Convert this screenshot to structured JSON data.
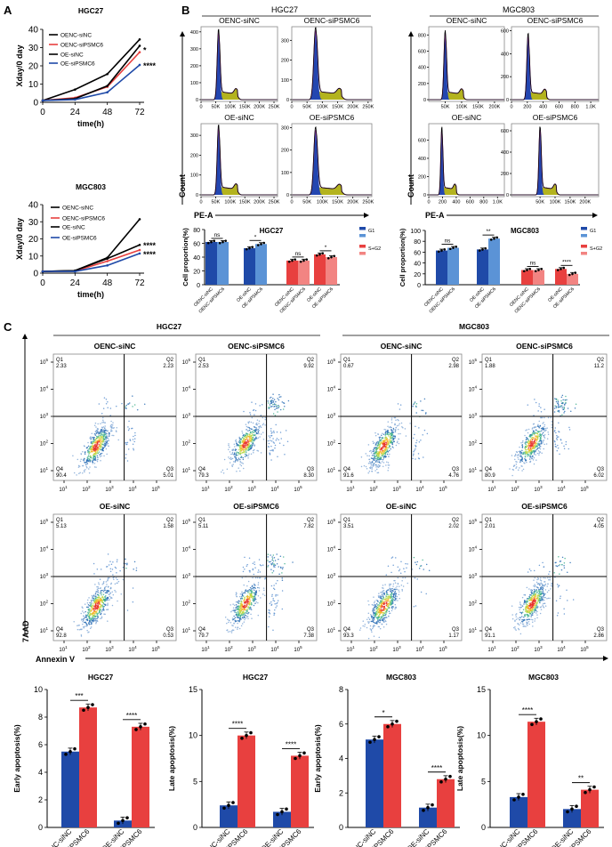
{
  "panel_labels": {
    "a": "A",
    "b": "B",
    "c": "C"
  },
  "headers": {
    "b_hgc27": "HGC27",
    "b_mgc803": "MGC803",
    "c_hgc27": "HGC27",
    "c_mgc803": "MGC803"
  },
  "axis_labels": {
    "count": "Count",
    "pe_a": "PE-A",
    "annexin": "Annexin V",
    "aad": "7AAD"
  },
  "colors": {
    "blue": "#1f4aa8",
    "light_blue": "#5b93d6",
    "red": "#e8403f",
    "light_red": "#f28482",
    "black": "#000000",
    "hist_g1": "#2346b0",
    "hist_s": "#b3b31e",
    "hist_outline": "#a43ca8"
  },
  "chart_data": [
    {
      "id": "growth_hgc27",
      "type": "line",
      "title": "HGC27",
      "xlabel": "time(h)",
      "ylabel": "Xday/0 day",
      "x": [
        0,
        24,
        48,
        72
      ],
      "xticks": [
        0,
        24,
        48,
        72
      ],
      "ylim": [
        0,
        40
      ],
      "yticks": [
        0,
        10,
        20,
        30,
        40
      ],
      "legend": "top-left",
      "series": [
        {
          "name": "OENC-siNC",
          "color": "#000000",
          "values": [
            1,
            7,
            15.5,
            34.5
          ]
        },
        {
          "name": "OENC-siPSMC6",
          "color": "#e8403f",
          "values": [
            1,
            2.5,
            8.5,
            27.5
          ]
        },
        {
          "name": "OE-siNC",
          "color": "#000000",
          "values": [
            1,
            2,
            9,
            31
          ]
        },
        {
          "name": "OE-siPSMC6",
          "color": "#1f4aa8",
          "values": [
            1,
            1.5,
            5.5,
            20.5
          ]
        }
      ],
      "annotations": [
        {
          "text": "*",
          "at": 29
        },
        {
          "text": "****",
          "at": 20.5
        }
      ]
    },
    {
      "id": "growth_mgc803",
      "type": "line",
      "title": "MGC803",
      "xlabel": "time(h)",
      "ylabel": "Xday/0 day",
      "x": [
        0,
        24,
        48,
        72
      ],
      "xticks": [
        0,
        24,
        48,
        72
      ],
      "ylim": [
        0,
        40
      ],
      "yticks": [
        0,
        10,
        20,
        30,
        40
      ],
      "legend": "top-left",
      "series": [
        {
          "name": "OENC-siNC",
          "color": "#000000",
          "values": [
            1,
            1.5,
            9,
            31.5
          ]
        },
        {
          "name": "OENC-siPSMC6",
          "color": "#e8403f",
          "values": [
            1,
            1.2,
            7,
            13.5
          ]
        },
        {
          "name": "OE-siNC",
          "color": "#000000",
          "values": [
            1,
            1.5,
            8.5,
            16.5
          ]
        },
        {
          "name": "OE-siPSMC6",
          "color": "#1f4aa8",
          "values": [
            1,
            1,
            4.5,
            11.5
          ]
        }
      ],
      "annotations": [
        {
          "text": "****",
          "at": 16.5
        },
        {
          "text": "****",
          "at": 12.8
        }
      ]
    },
    {
      "id": "cellcycle_histograms",
      "type": "histogram",
      "xlabel": "PE-A",
      "ylabel": "Count",
      "panels": [
        {
          "cell_line": "HGC27",
          "title": "OENC-siNC",
          "xlim": [
            0,
            262144
          ],
          "xticks": [
            0,
            50000,
            100000,
            150000,
            200000,
            250000
          ],
          "xticklabels": [
            "0",
            "50K",
            "100K",
            "150K",
            "200K",
            "250K"
          ],
          "yticks": [
            0,
            100,
            200,
            300,
            400
          ],
          "ymax": 420,
          "g1_peak": 60000,
          "peak_count": 400
        },
        {
          "cell_line": "HGC27",
          "title": "OENC-siPSMC6",
          "xlim": [
            0,
            262144
          ],
          "xticks": [
            0,
            50000,
            100000,
            150000,
            200000,
            250000
          ],
          "xticklabels": [
            "0",
            "50K",
            "100K",
            "150K",
            "200K",
            "250K"
          ],
          "yticks": [
            0,
            100,
            200,
            300
          ],
          "ymax": 360,
          "g1_peak": 78000,
          "peak_count": 350
        },
        {
          "cell_line": "HGC27",
          "title": "OE-siNC",
          "xlim": [
            0,
            262144
          ],
          "xticks": [
            0,
            50000,
            100000,
            150000,
            200000,
            250000
          ],
          "xticklabels": [
            "0",
            "50K",
            "100K",
            "150K",
            "200K",
            "250K"
          ],
          "yticks": [
            0,
            100,
            200,
            300
          ],
          "ymax": 350,
          "g1_peak": 60000,
          "peak_count": 340
        },
        {
          "cell_line": "HGC27",
          "title": "OE-siPSMC6",
          "xlim": [
            0,
            262144
          ],
          "xticks": [
            0,
            50000,
            100000,
            150000,
            200000,
            250000
          ],
          "xticklabels": [
            "0",
            "50K",
            "100K",
            "150K",
            "200K",
            "250K"
          ],
          "yticks": [
            0,
            100,
            200,
            300
          ],
          "ymax": 310,
          "g1_peak": 78000,
          "peak_count": 290
        },
        {
          "cell_line": "MGC803",
          "title": "OENC-siNC",
          "xlim": [
            0,
            230000
          ],
          "xticks": [
            50000,
            100000,
            150000,
            200000
          ],
          "xticklabels": [
            "50K",
            "100K",
            "150K",
            "200K"
          ],
          "yticks": [
            0,
            200,
            400,
            600,
            800
          ],
          "ymax": 880,
          "g1_peak": 50000,
          "peak_count": 820
        },
        {
          "cell_line": "MGC803",
          "title": "OENC-siPSMC6",
          "xlim": [
            0,
            1100
          ],
          "xticks": [
            0,
            200,
            400,
            600,
            800,
            1000
          ],
          "xticklabels": [
            "0",
            "200",
            "400",
            "600",
            "800",
            "1.0K"
          ],
          "yticks": [
            0,
            200,
            400,
            600
          ],
          "ymax": 620,
          "g1_peak": 210,
          "peak_count": 560
        },
        {
          "cell_line": "MGC803",
          "title": "OE-siNC",
          "xlim": [
            0,
            1100
          ],
          "xticks": [
            0,
            200,
            400,
            600,
            800,
            1000
          ],
          "xticklabels": [
            "0",
            "200",
            "400",
            "600",
            "800",
            "1.0K"
          ],
          "yticks": [
            0,
            200,
            400,
            600
          ],
          "ymax": 760,
          "g1_peak": 190,
          "peak_count": 720
        },
        {
          "cell_line": "MGC803",
          "title": "OE-siPSMC6",
          "xlim": [
            -45000,
            245000
          ],
          "xticks": [
            50000,
            100000,
            150000,
            200000
          ],
          "xticklabels": [
            "50K",
            "100K",
            "150K",
            "200K"
          ],
          "yticks": [
            0,
            200,
            400,
            600
          ],
          "ymax": 650,
          "g1_peak": 50000,
          "peak_count": 620
        }
      ]
    },
    {
      "id": "cellcycle_hgc27",
      "type": "bar",
      "title": "HGC27",
      "ylabel": "Cell proportion(%)",
      "categories": [
        "OENC-siNC",
        "OENC-siPSMC6",
        "OE-siNC",
        "OE-siPSMC6"
      ],
      "series": [
        {
          "name": "G1",
          "colors": [
            "#1f4aa8",
            "#5b93d6"
          ],
          "values": [
            62,
            62,
            53,
            59
          ]
        },
        {
          "name": "S+G2",
          "colors": [
            "#e8403f",
            "#f28482"
          ],
          "values": [
            35,
            35,
            44,
            40
          ]
        }
      ],
      "significance": [
        "ns",
        "*",
        "ns",
        "*"
      ],
      "ylim": [
        0,
        80
      ],
      "yticks": [
        0,
        20,
        40,
        60,
        80
      ],
      "legend": "right"
    },
    {
      "id": "cellcycle_mgc803",
      "type": "bar",
      "title": "MGC803",
      "ylabel": "Cell proportion(%)",
      "categories": [
        "OENC-siNC",
        "OENC-siPSMC6",
        "OE-siNC",
        "OE-siPSMC6"
      ],
      "series": [
        {
          "name": "G1",
          "colors": [
            "#1f4aa8",
            "#5b93d6"
          ],
          "values": [
            63,
            68,
            65,
            85
          ]
        },
        {
          "name": "S+G2",
          "colors": [
            "#e8403f",
            "#f28482"
          ],
          "values": [
            27,
            27,
            29,
            20
          ]
        }
      ],
      "significance": [
        "ns",
        "**",
        "ns",
        "****"
      ],
      "ylim": [
        0,
        100
      ],
      "yticks": [
        0,
        20,
        40,
        60,
        80,
        100
      ],
      "legend": "right"
    },
    {
      "id": "apoptosis_flow",
      "type": "scatter",
      "xlabel": "Annexin V",
      "ylabel": "7AAD",
      "ticks": [
        {
          "base": "10",
          "exp": "1"
        },
        {
          "base": "10",
          "exp": "2"
        },
        {
          "base": "10",
          "exp": "3"
        },
        {
          "base": "10",
          "exp": "4"
        },
        {
          "base": "10",
          "exp": "5"
        }
      ],
      "panels": [
        {
          "cell_line": "HGC27",
          "title": "OENC-siNC",
          "Q1": "2.33",
          "Q2": "2.23",
          "Q3": "5.01",
          "Q4": "90.4"
        },
        {
          "cell_line": "HGC27",
          "title": "OENC-siPSMC6",
          "Q1": "2.53",
          "Q2": "9.92",
          "Q3": "8.30",
          "Q4": "79.3"
        },
        {
          "cell_line": "MGC803",
          "title": "OENC-siNC",
          "Q1": "0.67",
          "Q2": "2.98",
          "Q3": "4.76",
          "Q4": "91.6"
        },
        {
          "cell_line": "MGC803",
          "title": "OENC-siPSMC6",
          "Q1": "1.88",
          "Q2": "11.2",
          "Q3": "6.02",
          "Q4": "80.9"
        },
        {
          "cell_line": "HGC27",
          "title": "OE-siNC",
          "Q1": "5.13",
          "Q2": "1.58",
          "Q3": "0.53",
          "Q4": "92.8"
        },
        {
          "cell_line": "HGC27",
          "title": "OE-siPSMC6",
          "Q1": "5.11",
          "Q2": "7.82",
          "Q3": "7.38",
          "Q4": "79.7"
        },
        {
          "cell_line": "MGC803",
          "title": "OE-siNC",
          "Q1": "3.51",
          "Q2": "2.02",
          "Q3": "1.17",
          "Q4": "93.3"
        },
        {
          "cell_line": "MGC803",
          "title": "OE-siPSMC6",
          "Q1": "2.01",
          "Q2": "4.05",
          "Q3": "2.86",
          "Q4": "91.1"
        }
      ]
    },
    {
      "id": "early_hgc27",
      "type": "bar",
      "title": "HGC27",
      "ylabel": "Early apoptosis(%)",
      "categories": [
        "OENC-siNC",
        "OENC-siPSMC6",
        "OE-siNC",
        "OE-siPSMC6"
      ],
      "values": [
        5.5,
        8.7,
        0.5,
        7.3
      ],
      "colors": [
        "#1f4aa8",
        "#e8403f",
        "#1f4aa8",
        "#e8403f"
      ],
      "significance": [
        "***",
        "****"
      ],
      "ylim": [
        0,
        10
      ],
      "yticks": [
        0,
        2,
        4,
        6,
        8,
        10
      ]
    },
    {
      "id": "late_hgc27",
      "type": "bar",
      "title": "HGC27",
      "ylabel": "Late apoptosis(%)",
      "categories": [
        "OENC-siNC",
        "OENC-siPSMC6",
        "OE-siNC",
        "OE-siPSMC6"
      ],
      "values": [
        2.4,
        10.0,
        1.7,
        7.8
      ],
      "colors": [
        "#1f4aa8",
        "#e8403f",
        "#1f4aa8",
        "#e8403f"
      ],
      "significance": [
        "****",
        "****"
      ],
      "ylim": [
        0,
        15
      ],
      "yticks": [
        0,
        5,
        10,
        15
      ]
    },
    {
      "id": "early_mgc803",
      "type": "bar",
      "title": "MGC803",
      "ylabel": "Early apoptosis(%)",
      "categories": [
        "OENC-siNC",
        "OENC-siPSMC6",
        "OE-siNC",
        "OE-siPSMC6"
      ],
      "values": [
        5.1,
        6.0,
        1.15,
        2.8
      ],
      "colors": [
        "#1f4aa8",
        "#e8403f",
        "#1f4aa8",
        "#e8403f"
      ],
      "significance": [
        "*",
        "****"
      ],
      "ylim": [
        0,
        8
      ],
      "yticks": [
        0,
        2,
        4,
        6,
        8
      ]
    },
    {
      "id": "late_mgc803",
      "type": "bar",
      "title": "MGC803",
      "ylabel": "Late apoptosis(%)",
      "categories": [
        "OENC-siNC",
        "OENC-siPSMC6",
        "OE-siNC",
        "OE-siPSMC6"
      ],
      "values": [
        3.3,
        11.5,
        2.0,
        4.1
      ],
      "colors": [
        "#1f4aa8",
        "#e8403f",
        "#1f4aa8",
        "#e8403f"
      ],
      "significance": [
        "****",
        "**"
      ],
      "ylim": [
        0,
        15
      ],
      "yticks": [
        0,
        5,
        10,
        15
      ]
    }
  ]
}
